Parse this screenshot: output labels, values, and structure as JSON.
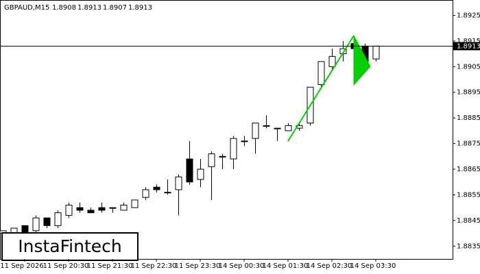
{
  "chart_data": {
    "type": "candlestick",
    "title": "GBPAUD,M15",
    "header_values": [
      1.8908,
      1.8913,
      1.8907,
      1.8913
    ],
    "watermark": "InstaFintech",
    "categories": [
      null,
      null,
      "11 Sep 2026",
      null,
      null,
      null,
      "11 Sep 20:30",
      null,
      null,
      null,
      "11 Sep 21:30",
      null,
      null,
      null,
      "11 Sep 22:30",
      null,
      null,
      null,
      "11 Sep 23:30",
      null,
      null,
      null,
      "14 Sep 00:30",
      null,
      null,
      null,
      "14 Sep 01:30",
      null,
      null,
      null,
      "14 Sep 02:30",
      null,
      null,
      null,
      "14 Sep 03:30"
    ],
    "open": [
      1.884,
      1.884,
      1.8843,
      1.8841,
      1.8846,
      1.8843,
      1.8847,
      1.885,
      1.8849,
      1.885,
      1.885,
      1.8849,
      1.885,
      1.8854,
      1.8858,
      1.8856,
      1.8857,
      1.8869,
      1.8861,
      1.8866,
      1.887,
      1.8869,
      1.8876,
      1.8877,
      1.8882,
      1.8881,
      1.888,
      1.8881,
      1.8883,
      1.8898,
      1.8905,
      1.891,
      1.8914,
      1.8913,
      1.8908
    ],
    "high": [
      1.8841,
      1.8842,
      1.8843,
      1.8847,
      1.8846,
      1.8849,
      1.8852,
      1.8852,
      1.885,
      1.8852,
      1.885,
      1.8852,
      1.8853,
      1.8858,
      1.8859,
      1.8861,
      1.8863,
      1.8876,
      1.8869,
      1.8872,
      1.8871,
      1.8878,
      1.8878,
      1.8883,
      1.8886,
      1.8881,
      1.8883,
      1.8883,
      1.8897,
      1.8907,
      1.8912,
      1.8915,
      1.8916,
      1.8914,
      1.8913
    ],
    "low": [
      1.8838,
      1.8838,
      1.8838,
      1.884,
      1.8842,
      1.8842,
      1.8846,
      1.8848,
      1.8848,
      1.8848,
      1.8848,
      1.8849,
      1.885,
      1.8853,
      1.8856,
      1.8855,
      1.8847,
      1.8859,
      1.8858,
      1.8853,
      1.8865,
      1.8865,
      1.8874,
      1.8871,
      1.8881,
      1.8876,
      1.888,
      1.888,
      1.8882,
      1.8897,
      1.8904,
      1.8907,
      1.891,
      1.8906,
      1.8907
    ],
    "close": [
      1.8841,
      1.8842,
      1.884,
      1.8846,
      1.8843,
      1.8848,
      1.8851,
      1.8849,
      1.8848,
      1.8849,
      1.885,
      1.8851,
      1.8853,
      1.8857,
      1.8857,
      1.8856,
      1.8862,
      1.886,
      1.8865,
      1.8871,
      1.887,
      1.8877,
      1.8876,
      1.8883,
      1.8882,
      1.8881,
      1.8882,
      1.8882,
      1.8897,
      1.8907,
      1.8909,
      1.8912,
      1.8912,
      1.8907,
      1.8913
    ],
    "current_price": 1.8913,
    "ylim": [
      1.883,
      1.8931
    ],
    "yticks": [
      1.8835,
      1.8845,
      1.8855,
      1.8865,
      1.8875,
      1.8885,
      1.8895,
      1.8905,
      1.8915,
      1.8925
    ],
    "up_color": "#ffffff",
    "down_color": "#000000",
    "pattern_color": "#00d000"
  }
}
